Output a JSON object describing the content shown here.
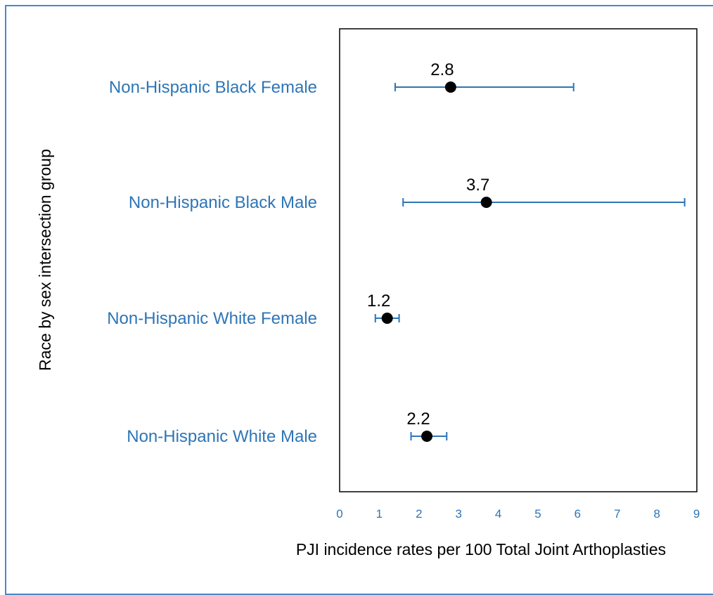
{
  "chart_data": {
    "type": "scatter",
    "xlabel": "PJI incidence rates per 100 Total Joint Arthoplasties",
    "ylabel": "Race by sex intersection group",
    "xlim": [
      0,
      9
    ],
    "x_ticks": [
      "0",
      "1",
      "2",
      "3",
      "4",
      "5",
      "6",
      "7",
      "8",
      "9"
    ],
    "grid": false,
    "categories": [
      "Non-Hispanic Black Female",
      "Non-Hispanic Black Male",
      "Non-Hispanic White Female",
      "Non-Hispanic White Male"
    ],
    "points": [
      {
        "category": "Non-Hispanic Black Female",
        "value": 2.8,
        "label": "2.8",
        "ci_low": 1.4,
        "ci_high": 5.9
      },
      {
        "category": "Non-Hispanic Black Male",
        "value": 3.7,
        "label": "3.7",
        "ci_low": 1.6,
        "ci_high": 8.7
      },
      {
        "category": "Non-Hispanic White Female",
        "value": 1.2,
        "label": "1.2",
        "ci_low": 0.9,
        "ci_high": 1.5
      },
      {
        "category": "Non-Hispanic White Male",
        "value": 2.2,
        "label": "2.2",
        "ci_low": 1.8,
        "ci_high": 2.7
      }
    ],
    "colors": {
      "point": "#000000",
      "error_bar": "#2e75b6",
      "label_text": "#2e75b6",
      "frame": "#4a86c8"
    }
  }
}
